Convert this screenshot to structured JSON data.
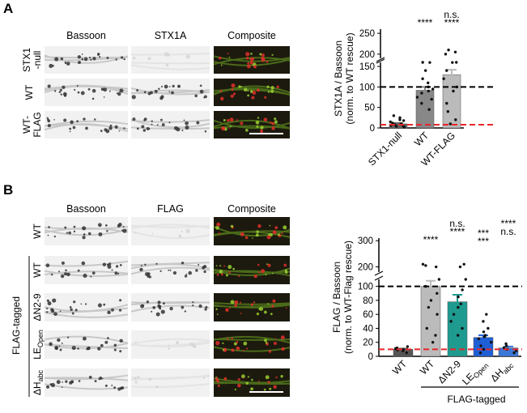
{
  "panel_a": {
    "label": "A",
    "headers": [
      {
        "text": "Bassoon",
        "color": "#e8262a"
      },
      {
        "text": "STX1A",
        "color": "#2a9a2a"
      },
      {
        "text": "Composite",
        "color": "#000000"
      }
    ],
    "rows": [
      "STX1-null",
      "WT",
      "WT-FLAG"
    ]
  },
  "panel_b": {
    "label": "B",
    "headers": [
      {
        "text": "Bassoon",
        "color": "#e8262a"
      },
      {
        "text": "FLAG",
        "color": "#2a9a2a"
      },
      {
        "text": "Composite",
        "color": "#000000"
      }
    ],
    "rows": [
      "WT",
      "WT",
      "ΔN2-9",
      "LE",
      "ΔH"
    ],
    "row_subscripts": [
      null,
      null,
      null,
      "Open",
      "abc"
    ],
    "group_label": "FLAG-tagged"
  },
  "chart_data": [
    {
      "type": "bar",
      "ylabel": [
        "STX1A / Bassoon",
        "(norm. to WT rescue)"
      ],
      "categories": [
        "STX1-null",
        "WT",
        "WT-FLAG"
      ],
      "category_subscripts": [
        null,
        null,
        null
      ],
      "values": [
        10,
        92,
        130
      ],
      "errors": [
        2,
        8,
        12
      ],
      "colors": [
        "#666666",
        "#888888",
        "#bbbbbb"
      ],
      "points": [
        [
          2,
          5,
          8,
          12,
          15,
          20,
          25,
          30,
          4,
          10,
          18,
          6
        ],
        [
          45,
          60,
          75,
          85,
          95,
          100,
          110,
          120,
          140,
          160,
          180,
          70,
          90
        ],
        [
          20,
          40,
          60,
          90,
          120,
          140,
          160,
          180,
          200,
          205,
          210,
          10,
          100
        ]
      ],
      "ylim": [
        0,
        160
      ],
      "yticks": [
        0,
        50,
        100,
        150
      ],
      "ylim_upper": [
        190,
        260
      ],
      "yticks_upper": [
        200,
        250
      ],
      "reference_lines": [
        {
          "value": 100,
          "color": "#000000"
        },
        {
          "value": 8,
          "color": "#e8262a"
        }
      ],
      "annotations": [
        {
          "category": 1,
          "lines": [
            {
              "text": "****",
              "color": "#e8262a"
            }
          ]
        },
        {
          "category": 2,
          "lines": [
            {
              "text": "n.s.",
              "color": "#000000"
            },
            {
              "text": "****",
              "color": "#e8262a"
            }
          ]
        }
      ]
    },
    {
      "type": "bar",
      "ylabel": [
        "FLAG / Bassoon",
        "(norm. to WT-Flag rescue)"
      ],
      "categories": [
        "WT",
        "WT",
        "ΔN2-9",
        "LE",
        "ΔH"
      ],
      "category_subscripts": [
        null,
        null,
        null,
        "Open",
        "abc"
      ],
      "values": [
        10,
        100,
        78,
        27,
        12
      ],
      "errors": [
        1,
        8,
        10,
        3,
        2
      ],
      "colors": [
        "#555555",
        "#bbbbbb",
        "#1f9a8f",
        "#1f5fd6",
        "#3a78d8"
      ],
      "points": [
        [
          5,
          8,
          10,
          12,
          14,
          9,
          11
        ],
        [
          20,
          40,
          60,
          80,
          100,
          110,
          90,
          70,
          200,
          210,
          205,
          30
        ],
        [
          30,
          50,
          60,
          75,
          85,
          95,
          110,
          210,
          200,
          40,
          70
        ],
        [
          5,
          10,
          20,
          25,
          30,
          35,
          40,
          50,
          60,
          15,
          28
        ],
        [
          5,
          10,
          12,
          15,
          18,
          8
        ]
      ],
      "ylim": [
        0,
        110
      ],
      "yticks": [
        0,
        20,
        40,
        60,
        80,
        100
      ],
      "ylim_upper": [
        180,
        310
      ],
      "yticks_upper": [
        200,
        300
      ],
      "reference_lines": [
        {
          "value": 100,
          "color": "#000000"
        },
        {
          "value": 10,
          "color": "#e8262a"
        }
      ],
      "group_label": "FLAG-tagged",
      "annotations": [
        {
          "category": 1,
          "lines": [
            {
              "text": "****",
              "color": "#e8262a"
            }
          ]
        },
        {
          "category": 2,
          "lines": [
            {
              "text": "n.s.",
              "color": "#000000"
            },
            {
              "text": "****",
              "color": "#e8262a"
            }
          ]
        },
        {
          "category": 3,
          "lines": [
            {
              "text": "***",
              "color": "#000000"
            },
            {
              "text": "***",
              "color": "#e8262a"
            }
          ]
        },
        {
          "category": 4,
          "lines": [
            {
              "text": "****",
              "color": "#000000"
            },
            {
              "text": "n.s.",
              "color": "#e8262a"
            }
          ]
        }
      ]
    }
  ]
}
